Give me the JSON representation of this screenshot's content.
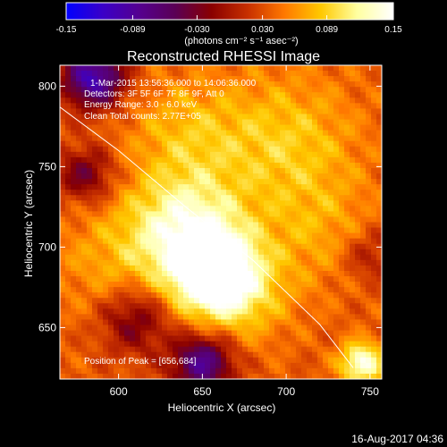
{
  "chart_data": {
    "type": "heatmap",
    "title": "Reconstructed RHESSI Image",
    "xlabel": "Heliocentric X (arcsec)",
    "ylabel": "Heliocentric Y (arcsec)",
    "xlim": [
      565,
      757
    ],
    "ylim": [
      618,
      813
    ],
    "xticks": [
      600,
      650,
      700,
      750
    ],
    "yticks": [
      650,
      700,
      750,
      800
    ],
    "colorbar": {
      "ticks": [
        "-0.15",
        "-0.089",
        "-0.030",
        "0.030",
        "0.089",
        "0.15"
      ],
      "range": [
        -0.15,
        0.15
      ],
      "unit_label": "(photons cm⁻² s⁻¹ asec⁻²)",
      "colormap": [
        "#0000ff",
        "#3a00c8",
        "#550090",
        "#5a0055",
        "#8a0000",
        "#c83000",
        "#ff7800",
        "#ffc800",
        "#ffffa0",
        "#ffffff"
      ]
    },
    "annotations": [
      "1-Mar-2015 13:56:36.000 to 14:06:36.000",
      "Detectors: 3F 5F 6F 7F 8F 9F, Att 0",
      "Energy Range: 3.0 - 6.0 keV",
      "Clean    Total counts: 2.77E+05"
    ],
    "peak_label": "Position of Peak = [656,684]",
    "peak": [
      656,
      684
    ],
    "limb_curve": [
      [
        565,
        787
      ],
      [
        600,
        760
      ],
      [
        640,
        725
      ],
      [
        680,
        692
      ],
      [
        720,
        652
      ],
      [
        740,
        625
      ]
    ],
    "blobs": [
      {
        "x": 657,
        "y": 684,
        "amp": 0.12,
        "sigma": 16
      },
      {
        "x": 640,
        "y": 710,
        "amp": 0.1,
        "sigma": 24
      },
      {
        "x": 670,
        "y": 672,
        "amp": 0.06,
        "sigma": 22
      },
      {
        "x": 745,
        "y": 628,
        "amp": 0.11,
        "sigma": 9
      },
      {
        "x": 700,
        "y": 765,
        "amp": 0.05,
        "sigma": 30
      },
      {
        "x": 640,
        "y": 770,
        "amp": 0.04,
        "sigma": 25
      },
      {
        "x": 595,
        "y": 690,
        "amp": 0.03,
        "sigma": 26
      },
      {
        "x": 720,
        "y": 710,
        "amp": 0.03,
        "sigma": 25
      },
      {
        "x": 585,
        "y": 805,
        "amp": -0.14,
        "sigma": 13
      },
      {
        "x": 650,
        "y": 628,
        "amp": -0.12,
        "sigma": 13
      },
      {
        "x": 610,
        "y": 655,
        "amp": -0.07,
        "sigma": 15
      },
      {
        "x": 580,
        "y": 745,
        "amp": -0.07,
        "sigma": 12
      },
      {
        "x": 750,
        "y": 695,
        "amp": -0.04,
        "sigma": 12
      }
    ]
  },
  "footer": {
    "timestamp": "16-Aug-2017 04:36"
  }
}
